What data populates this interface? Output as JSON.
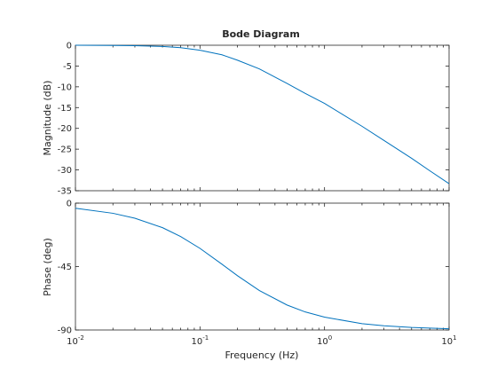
{
  "figure": {
    "title": "Bode Diagram",
    "xlabel": "Frequency  (Hz)",
    "background": "#ffffff",
    "line_color": "#0072bd",
    "axis_color": "#262626"
  },
  "chart_data": [
    {
      "type": "line",
      "name": "magnitude",
      "title": "Bode Diagram",
      "xlabel": "Frequency  (Hz)",
      "ylabel": "Magnitude (dB)",
      "xscale": "log",
      "xlim": [
        0.01,
        10
      ],
      "ylim": [
        -35,
        0
      ],
      "yticks": [
        0,
        -5,
        -10,
        -15,
        -20,
        -25,
        -30,
        -35
      ],
      "ytick_labels": [
        "0",
        "-5",
        "-10",
        "-15",
        "-20",
        "-25",
        "-30",
        "-35"
      ],
      "xticks": [
        0.01,
        0.1,
        1,
        10
      ],
      "grid": false,
      "x": [
        0.01,
        0.02,
        0.03,
        0.05,
        0.07,
        0.1,
        0.15,
        0.2,
        0.3,
        0.5,
        0.7,
        1,
        2,
        3,
        5,
        7,
        10
      ],
      "y": [
        -0.01,
        -0.05,
        -0.1,
        -0.3,
        -0.6,
        -1.2,
        -2.3,
        -3.6,
        -5.7,
        -9.2,
        -11.6,
        -14.0,
        -19.5,
        -22.9,
        -27.2,
        -30.2,
        -33.3
      ]
    },
    {
      "type": "line",
      "name": "phase",
      "ylabel": "Phase (deg)",
      "xscale": "log",
      "xlim": [
        0.01,
        10
      ],
      "ylim": [
        -90,
        0
      ],
      "yticks": [
        0,
        -45,
        -90
      ],
      "ytick_labels": [
        "0",
        "-45",
        "-90"
      ],
      "xticks": [
        0.01,
        0.1,
        1,
        10
      ],
      "xtick_labels": [
        {
          "base": "10",
          "exp": "-2"
        },
        {
          "base": "10",
          "exp": "-1"
        },
        {
          "base": "10",
          "exp": "0"
        },
        {
          "base": "10",
          "exp": "1"
        }
      ],
      "grid": false,
      "x": [
        0.01,
        0.02,
        0.03,
        0.05,
        0.07,
        0.1,
        0.15,
        0.2,
        0.3,
        0.5,
        0.7,
        1,
        2,
        3,
        5,
        7,
        10
      ],
      "y": [
        -3.6,
        -7.2,
        -10.7,
        -17.4,
        -23.7,
        -32.1,
        -43.3,
        -51.5,
        -62.0,
        -72.3,
        -77.2,
        -80.9,
        -85.5,
        -87.0,
        -88.2,
        -88.7,
        -89.1
      ]
    }
  ]
}
